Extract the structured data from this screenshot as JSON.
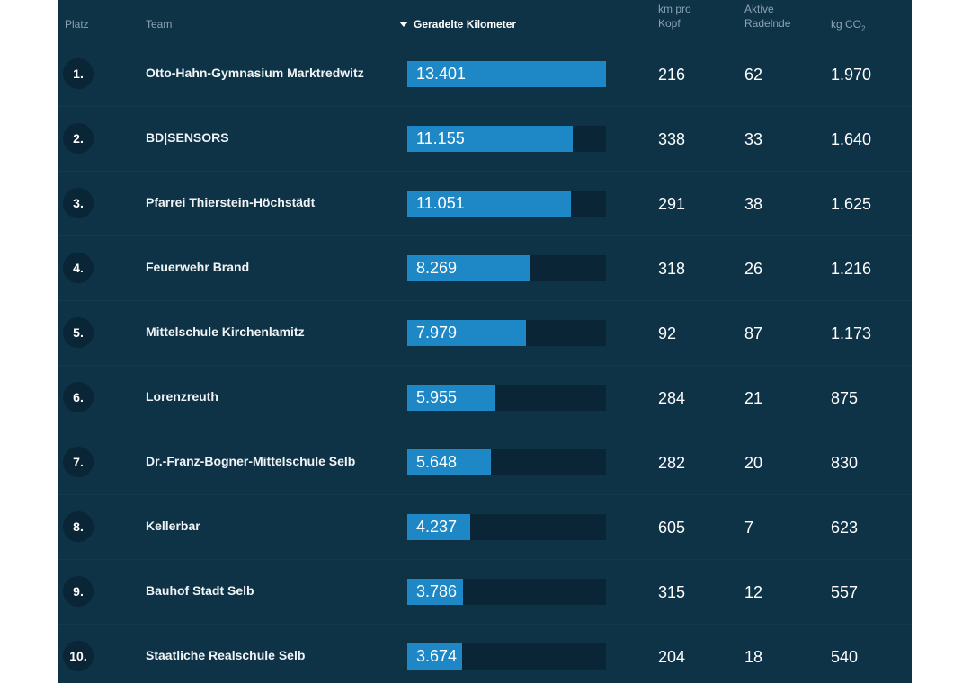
{
  "header": {
    "platz": "Platz",
    "team": "Team",
    "km": "Geradelte Kilometer",
    "km_pro_kopf_1": "km pro",
    "km_pro_kopf_2": "Kopf",
    "aktive_1": "Aktive",
    "aktive_2": "Radelnde",
    "co2_prefix": "kg CO",
    "co2_sub": "2"
  },
  "colors": {
    "background": "#0e3246",
    "bar_fill": "#1e88c7",
    "bar_track": "#0a2536"
  },
  "max_km": 13401,
  "rows": [
    {
      "rank": "1.",
      "team": "Otto-Hahn-Gymnasium Marktredwitz",
      "km": "13.401",
      "km_value": 13401,
      "km_pro_kopf": "216",
      "aktive": "62",
      "co2": "1.970"
    },
    {
      "rank": "2.",
      "team": "BD|SENSORS",
      "km": "11.155",
      "km_value": 11155,
      "km_pro_kopf": "338",
      "aktive": "33",
      "co2": "1.640"
    },
    {
      "rank": "3.",
      "team": "Pfarrei Thierstein-Höchstädt",
      "km": "11.051",
      "km_value": 11051,
      "km_pro_kopf": "291",
      "aktive": "38",
      "co2": "1.625"
    },
    {
      "rank": "4.",
      "team": "Feuerwehr Brand",
      "km": "8.269",
      "km_value": 8269,
      "km_pro_kopf": "318",
      "aktive": "26",
      "co2": "1.216"
    },
    {
      "rank": "5.",
      "team": "Mittelschule Kirchenlamitz",
      "km": "7.979",
      "km_value": 7979,
      "km_pro_kopf": "92",
      "aktive": "87",
      "co2": "1.173"
    },
    {
      "rank": "6.",
      "team": "Lorenzreuth",
      "km": "5.955",
      "km_value": 5955,
      "km_pro_kopf": "284",
      "aktive": "21",
      "co2": "875"
    },
    {
      "rank": "7.",
      "team": "Dr.-Franz-Bogner-Mittelschule Selb",
      "km": "5.648",
      "km_value": 5648,
      "km_pro_kopf": "282",
      "aktive": "20",
      "co2": "830"
    },
    {
      "rank": "8.",
      "team": "Kellerbar",
      "km": "4.237",
      "km_value": 4237,
      "km_pro_kopf": "605",
      "aktive": "7",
      "co2": "623"
    },
    {
      "rank": "9.",
      "team": "Bauhof Stadt Selb",
      "km": "3.786",
      "km_value": 3786,
      "km_pro_kopf": "315",
      "aktive": "12",
      "co2": "557"
    },
    {
      "rank": "10.",
      "team": "Staatliche Realschule Selb",
      "km": "3.674",
      "km_value": 3674,
      "km_pro_kopf": "204",
      "aktive": "18",
      "co2": "540"
    }
  ]
}
